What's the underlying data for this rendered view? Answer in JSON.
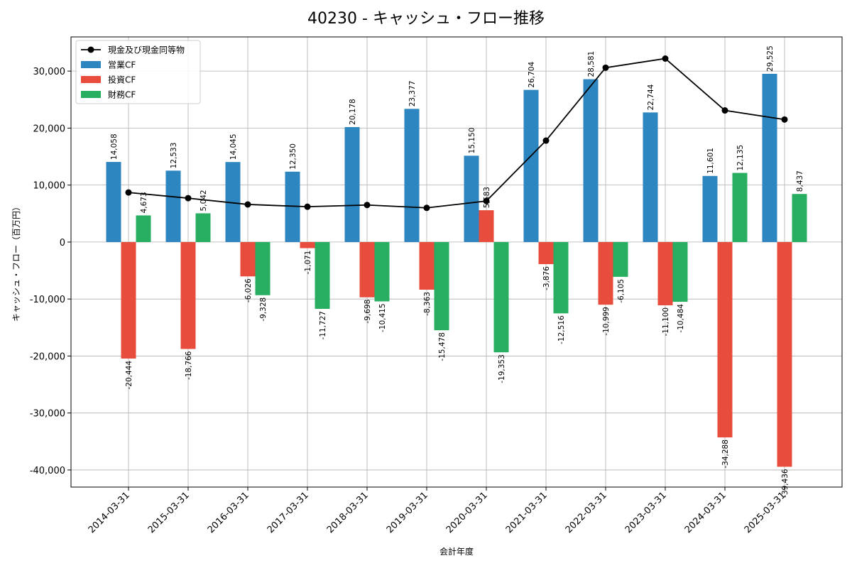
{
  "chart_data": {
    "type": "bar",
    "title": "40230 - キャッシュ・フロー推移",
    "xlabel": "会計年度",
    "ylabel": "キャッシュ・フロー（百万円）",
    "ylim": [
      -43000,
      36000
    ],
    "yticks": [
      -40000,
      -30000,
      -20000,
      -10000,
      0,
      10000,
      20000,
      30000
    ],
    "ytick_labels": [
      "-40,000",
      "-30,000",
      "-20,000",
      "-10,000",
      "0",
      "10,000",
      "20,000",
      "30,000"
    ],
    "grid": true,
    "legend_position": "top-left",
    "categories": [
      "2014-03-31",
      "2015-03-31",
      "2016-03-31",
      "2017-03-31",
      "2018-03-31",
      "2019-03-31",
      "2020-03-31",
      "2021-03-31",
      "2022-03-31",
      "2023-03-31",
      "2024-03-31",
      "2025-03-31"
    ],
    "series": [
      {
        "name": "営業CF",
        "kind": "bar",
        "color": "#2e86c1",
        "values": [
          14058,
          12533,
          14045,
          12350,
          20178,
          23377,
          15150,
          26704,
          28581,
          22744,
          11601,
          29525
        ],
        "labels": [
          "14,058",
          "12,533",
          "14,045",
          "12,350",
          "20,178",
          "23,377",
          "15,150",
          "26,704",
          "28,581",
          "22,744",
          "11,601",
          "29,525"
        ]
      },
      {
        "name": "投資CF",
        "kind": "bar",
        "color": "#e74c3c",
        "values": [
          -20444,
          -18766,
          -6026,
          -1071,
          -9698,
          -8363,
          5583,
          -3876,
          -10999,
          -11100,
          -34288,
          -39436
        ],
        "labels": [
          "-20,444",
          "-18,766",
          "-6,026",
          "-1,071",
          "-9,698",
          "-8,363",
          "5,583",
          "-3,876",
          "-10,999",
          "-11,100",
          "-34,288",
          "-39,436"
        ]
      },
      {
        "name": "財務CF",
        "kind": "bar",
        "color": "#27ae60",
        "values": [
          4673,
          5042,
          -9328,
          -11727,
          -10415,
          -15478,
          -19353,
          -12516,
          -6105,
          -10484,
          12135,
          8437
        ],
        "labels": [
          "4,673",
          "5,042",
          "-9,328",
          "-11,727",
          "-10,415",
          "-15,478",
          "-19,353",
          "-12,516",
          "-6,105",
          "-10,484",
          "12,135",
          "8,437"
        ]
      },
      {
        "name": "現金及び現金同等物",
        "kind": "line",
        "color": "#000000",
        "values": [
          8700,
          7700,
          6600,
          6200,
          6500,
          6000,
          7200,
          17800,
          30600,
          32200,
          23100,
          21500
        ]
      }
    ]
  }
}
